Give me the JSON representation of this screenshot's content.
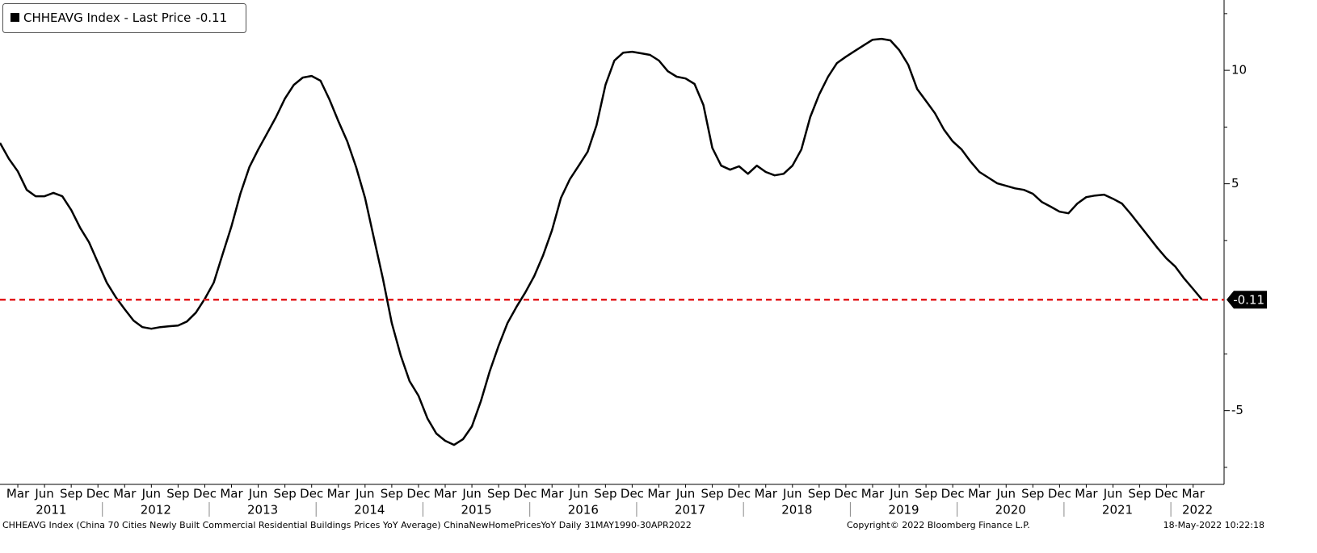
{
  "chart_data": {
    "type": "line",
    "legend_position": "upper left",
    "x": [
      "2011-01",
      "2011-02",
      "2011-03",
      "2011-04",
      "2011-05",
      "2011-06",
      "2011-07",
      "2011-08",
      "2011-09",
      "2011-10",
      "2011-11",
      "2011-12",
      "2012-01",
      "2012-02",
      "2012-03",
      "2012-04",
      "2012-05",
      "2012-06",
      "2012-07",
      "2012-08",
      "2012-09",
      "2012-10",
      "2012-11",
      "2012-12",
      "2013-01",
      "2013-02",
      "2013-03",
      "2013-04",
      "2013-05",
      "2013-06",
      "2013-07",
      "2013-08",
      "2013-09",
      "2013-10",
      "2013-11",
      "2013-12",
      "2014-01",
      "2014-02",
      "2014-03",
      "2014-04",
      "2014-05",
      "2014-06",
      "2014-07",
      "2014-08",
      "2014-09",
      "2014-10",
      "2014-11",
      "2014-12",
      "2015-01",
      "2015-02",
      "2015-03",
      "2015-04",
      "2015-05",
      "2015-06",
      "2015-07",
      "2015-08",
      "2015-09",
      "2015-10",
      "2015-11",
      "2015-12",
      "2016-01",
      "2016-02",
      "2016-03",
      "2016-04",
      "2016-05",
      "2016-06",
      "2016-07",
      "2016-08",
      "2016-09",
      "2016-10",
      "2016-11",
      "2016-12",
      "2017-01",
      "2017-02",
      "2017-03",
      "2017-04",
      "2017-05",
      "2017-06",
      "2017-07",
      "2017-08",
      "2017-09",
      "2017-10",
      "2017-11",
      "2017-12",
      "2018-01",
      "2018-02",
      "2018-03",
      "2018-04",
      "2018-05",
      "2018-06",
      "2018-07",
      "2018-08",
      "2018-09",
      "2018-10",
      "2018-11",
      "2018-12",
      "2019-01",
      "2019-02",
      "2019-03",
      "2019-04",
      "2019-05",
      "2019-06",
      "2019-07",
      "2019-08",
      "2019-09",
      "2019-10",
      "2019-11",
      "2019-12",
      "2020-01",
      "2020-02",
      "2020-03",
      "2020-04",
      "2020-05",
      "2020-06",
      "2020-07",
      "2020-08",
      "2020-09",
      "2020-10",
      "2020-11",
      "2020-12",
      "2021-01",
      "2021-02",
      "2021-03",
      "2021-04",
      "2021-05",
      "2021-06",
      "2021-07",
      "2021-08",
      "2021-09",
      "2021-10",
      "2021-11",
      "2021-12",
      "2022-01",
      "2022-02",
      "2022-03",
      "2022-04"
    ],
    "series": [
      {
        "name": "CHHEAVG Index - Last Price",
        "color": "#000000",
        "values": [
          6.8,
          6.1,
          5.55,
          4.73,
          4.45,
          4.45,
          4.6,
          4.45,
          3.84,
          3.06,
          2.42,
          1.53,
          0.64,
          0,
          -0.53,
          -1.03,
          -1.32,
          -1.39,
          -1.32,
          -1.28,
          -1.25,
          -1.07,
          -0.68,
          -0.07,
          0.64,
          1.89,
          3.13,
          4.56,
          5.73,
          6.51,
          7.22,
          7.94,
          8.75,
          9.36,
          9.68,
          9.75,
          9.54,
          8.72,
          7.76,
          6.87,
          5.73,
          4.38,
          2.6,
          0.82,
          -1.14,
          -2.56,
          -3.7,
          -4.34,
          -5.34,
          -6.01,
          -6.33,
          -6.51,
          -6.26,
          -5.69,
          -4.59,
          -3.27,
          -2.14,
          -1.14,
          -0.43,
          0.21,
          0.93,
          1.85,
          2.95,
          4.38,
          5.2,
          5.8,
          6.41,
          7.58,
          9.36,
          10.43,
          10.78,
          10.82,
          10.75,
          10.68,
          10.43,
          9.96,
          9.72,
          9.64,
          9.4,
          8.47,
          6.58,
          5.8,
          5.62,
          5.77,
          5.44,
          5.8,
          5.52,
          5.37,
          5.44,
          5.8,
          6.51,
          7.94,
          8.93,
          9.72,
          10.32,
          10.6,
          10.85,
          11.1,
          11.35,
          11.39,
          11.32,
          10.89,
          10.25,
          9.18,
          8.65,
          8.11,
          7.4,
          6.87,
          6.51,
          5.98,
          5.52,
          5.27,
          5.02,
          4.91,
          4.8,
          4.73,
          4.56,
          4.2,
          3.99,
          3.77,
          3.7,
          4.13,
          4.41,
          4.48,
          4.52,
          4.34,
          4.13,
          3.67,
          3.17,
          2.67,
          2.17,
          1.71,
          1.35,
          0.82,
          0.36,
          -0.11
        ]
      }
    ],
    "last_price_line_color": "#e31a1c",
    "ylim": [
      -8.25,
      13.1
    ],
    "yticks": [
      -5,
      5,
      10
    ],
    "yticks_minor": [
      -7.5,
      -2.5,
      2.5,
      7.5,
      12.5
    ],
    "xticks": [
      {
        "value": "2011-03",
        "label": "Mar"
      },
      {
        "value": "2011-06",
        "label": "Jun"
      },
      {
        "value": "2011-09",
        "label": "Sep"
      },
      {
        "value": "2011-12",
        "label": "Dec"
      },
      {
        "value": "2012-03",
        "label": "Mar"
      },
      {
        "value": "2012-06",
        "label": "Jun"
      },
      {
        "value": "2012-09",
        "label": "Sep"
      },
      {
        "value": "2012-12",
        "label": "Dec"
      },
      {
        "value": "2013-03",
        "label": "Mar"
      },
      {
        "value": "2013-06",
        "label": "Jun"
      },
      {
        "value": "2013-09",
        "label": "Sep"
      },
      {
        "value": "2013-12",
        "label": "Dec"
      },
      {
        "value": "2014-03",
        "label": "Mar"
      },
      {
        "value": "2014-06",
        "label": "Jun"
      },
      {
        "value": "2014-09",
        "label": "Sep"
      },
      {
        "value": "2014-12",
        "label": "Dec"
      },
      {
        "value": "2015-03",
        "label": "Mar"
      },
      {
        "value": "2015-06",
        "label": "Jun"
      },
      {
        "value": "2015-09",
        "label": "Sep"
      },
      {
        "value": "2015-12",
        "label": "Dec"
      },
      {
        "value": "2016-03",
        "label": "Mar"
      },
      {
        "value": "2016-06",
        "label": "Jun"
      },
      {
        "value": "2016-09",
        "label": "Sep"
      },
      {
        "value": "2016-12",
        "label": "Dec"
      },
      {
        "value": "2017-03",
        "label": "Mar"
      },
      {
        "value": "2017-06",
        "label": "Jun"
      },
      {
        "value": "2017-09",
        "label": "Sep"
      },
      {
        "value": "2017-12",
        "label": "Dec"
      },
      {
        "value": "2018-03",
        "label": "Mar"
      },
      {
        "value": "2018-06",
        "label": "Jun"
      },
      {
        "value": "2018-09",
        "label": "Sep"
      },
      {
        "value": "2018-12",
        "label": "Dec"
      },
      {
        "value": "2019-03",
        "label": "Mar"
      },
      {
        "value": "2019-06",
        "label": "Jun"
      },
      {
        "value": "2019-09",
        "label": "Sep"
      },
      {
        "value": "2019-12",
        "label": "Dec"
      },
      {
        "value": "2020-03",
        "label": "Mar"
      },
      {
        "value": "2020-06",
        "label": "Jun"
      },
      {
        "value": "2020-09",
        "label": "Sep"
      },
      {
        "value": "2020-12",
        "label": "Dec"
      },
      {
        "value": "2021-03",
        "label": "Mar"
      },
      {
        "value": "2021-06",
        "label": "Jun"
      },
      {
        "value": "2021-09",
        "label": "Sep"
      },
      {
        "value": "2021-12",
        "label": "Dec"
      },
      {
        "value": "2022-03",
        "label": "Mar"
      }
    ],
    "years": [
      "2011",
      "2012",
      "2013",
      "2014",
      "2015",
      "2016",
      "2017",
      "2018",
      "2019",
      "2020",
      "2021",
      "2022"
    ],
    "footnote": "CHHEAVG Index (China 70 Cities Newly Built Commercial Residential Buildings Prices YoY Average) ChinaNewHomePricesYoY  Daily 31MAY1990-30APR2022",
    "copyright": "Copyright© 2022 Bloomberg Finance L.P.",
    "timestamp": "18-May-2022 10:22:18"
  }
}
